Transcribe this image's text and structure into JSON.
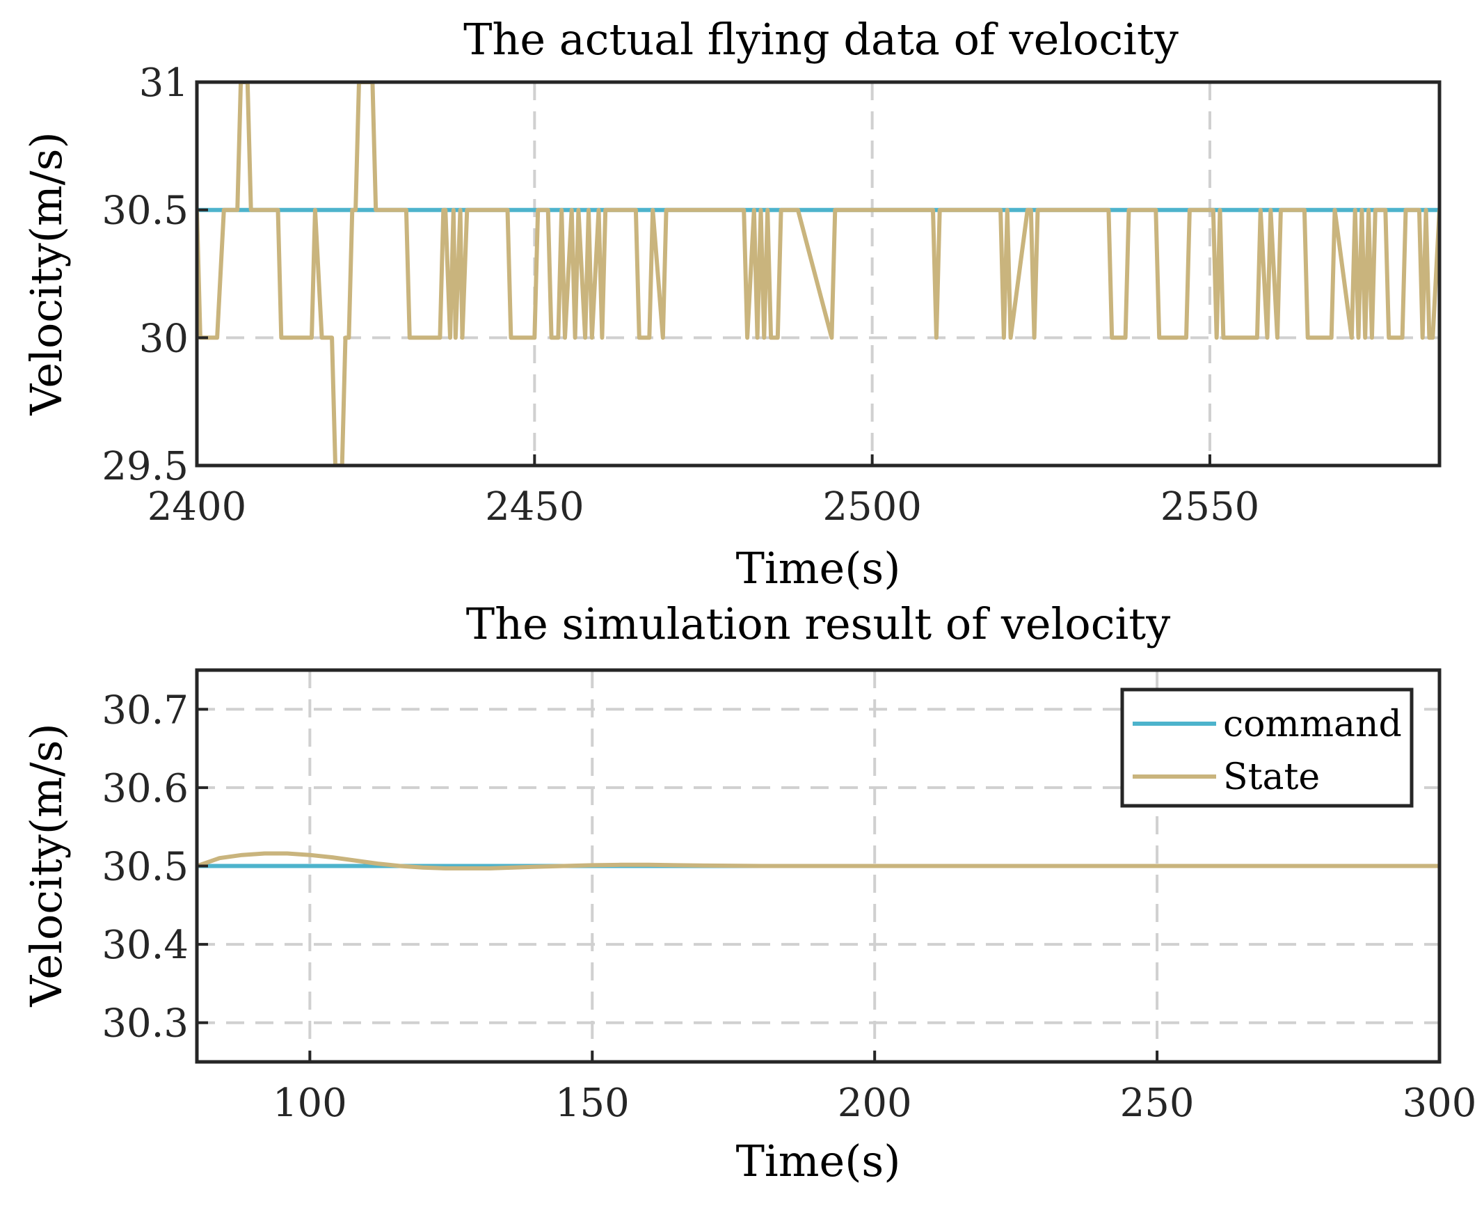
{
  "chart_data": [
    {
      "type": "line",
      "title": "The actual flying data of velocity",
      "xlabel": "Time(s)",
      "ylabel": "Velocity(m/s)",
      "xlim": [
        2400,
        2584
      ],
      "ylim": [
        29.5,
        31
      ],
      "xticks": [
        2400,
        2450,
        2500,
        2550
      ],
      "xtick_labels": [
        "2400",
        "2450",
        "2500",
        "2550"
      ],
      "yticks": [
        29.5,
        30,
        30.5,
        31
      ],
      "ytick_labels": [
        "29.5",
        "30",
        "30.5",
        "31"
      ],
      "grid": true,
      "colors": {
        "command": "#4db3cc",
        "state": "#c9b47d"
      },
      "series": [
        {
          "name": "command",
          "x": [
            2400,
            2584
          ],
          "y": [
            30.5,
            30.5
          ]
        },
        {
          "name": "state",
          "x": [
            2400,
            2400.5,
            2403,
            2404,
            2406,
            2406.5,
            2407.5,
            2408,
            2408.5,
            2409.5,
            2412,
            2412.5,
            2417,
            2417.5,
            2418.5,
            2420,
            2420.5,
            2421.5,
            2422,
            2422.5,
            2423,
            2423.5,
            2424,
            2426,
            2426.5,
            2427,
            2431,
            2431.5,
            2436,
            2436.5,
            2436.8,
            2437.5,
            2438,
            2438.3,
            2439,
            2439.3,
            2440,
            2440.3,
            2446,
            2446.5,
            2450,
            2450.5,
            2452,
            2452.5,
            2453.5,
            2454,
            2454.5,
            2455.5,
            2456,
            2456.5,
            2457.5,
            2458,
            2458.5,
            2459.5,
            2460,
            2460.5,
            2465,
            2465.5,
            2467,
            2467.5,
            2469,
            2469.5,
            2481,
            2481.5,
            2482.5,
            2483,
            2483.5,
            2484,
            2484.5,
            2485,
            2486,
            2486.5,
            2488.5,
            2489,
            2494,
            2494.5,
            2495,
            2495.5,
            2509,
            2509.5,
            2510,
            2510.5,
            2519,
            2519.5,
            2520,
            2520.5,
            2523,
            2523.5,
            2524,
            2524.5,
            2535,
            2535.5,
            2537.5,
            2538,
            2542,
            2542.5,
            2546.5,
            2547,
            2550.5,
            2551,
            2551.5,
            2552,
            2557,
            2557.5,
            2558.5,
            2559,
            2560,
            2560.5,
            2564,
            2564.5,
            2568,
            2568.5,
            2571,
            2571.5,
            2572,
            2572.5,
            2573,
            2573.5,
            2574,
            2574.5,
            2576,
            2576.5,
            2578.5,
            2579,
            2581,
            2581.5,
            2582,
            2582.5,
            2583,
            2584
          ],
          "y": [
            30.5,
            30,
            30,
            30.5,
            30.5,
            31,
            31,
            30.5,
            30.5,
            30.5,
            30.5,
            30,
            30,
            30.5,
            30,
            30,
            29.5,
            29.5,
            30,
            30,
            30.5,
            30.5,
            31,
            31,
            30.5,
            30.5,
            30.5,
            30,
            30,
            30.5,
            30.5,
            30,
            30.5,
            30,
            30.5,
            30,
            30.5,
            30.5,
            30.5,
            30,
            30,
            30.5,
            30.5,
            30,
            30,
            30.5,
            30,
            30.5,
            30,
            30.5,
            30,
            30.5,
            30,
            30.5,
            30,
            30.5,
            30.5,
            30,
            30,
            30.5,
            30,
            30.5,
            30.5,
            30,
            30.5,
            30,
            30.5,
            30,
            30.5,
            30,
            30,
            30.5,
            30.5,
            30.5,
            30,
            30.5,
            30.5,
            30.5,
            30.5,
            30,
            30.5,
            30.5,
            30.5,
            30,
            30.5,
            30,
            30.5,
            30.5,
            30,
            30.5,
            30.5,
            30,
            30,
            30.5,
            30.5,
            30,
            30,
            30.5,
            30.5,
            30,
            30.5,
            30,
            30,
            30.5,
            30,
            30.5,
            30,
            30.5,
            30.5,
            30,
            30,
            30.5,
            30,
            30.5,
            30,
            30.5,
            30,
            30.5,
            30,
            30.5,
            30.5,
            30,
            30,
            30.5,
            30.5,
            30,
            30.5,
            30,
            30,
            30.5
          ]
        }
      ]
    },
    {
      "type": "line",
      "title": "The simulation result of velocity",
      "xlabel": "Time(s)",
      "ylabel": "Velocity(m/s)",
      "xlim": [
        80,
        300
      ],
      "ylim": [
        30.25,
        30.75
      ],
      "xticks": [
        100,
        150,
        200,
        250,
        300
      ],
      "xtick_labels": [
        "100",
        "150",
        "200",
        "250",
        "300"
      ],
      "yticks": [
        30.3,
        30.4,
        30.5,
        30.6,
        30.7
      ],
      "ytick_labels": [
        "30.3",
        "30.4",
        "30.5",
        "30.6",
        "30.7"
      ],
      "grid": true,
      "legend": {
        "position": "top-right",
        "entries": [
          "command",
          "State"
        ]
      },
      "colors": {
        "command": "#4db3cc",
        "state": "#c9b47d"
      },
      "series": [
        {
          "name": "command",
          "x": [
            80,
            300
          ],
          "y": [
            30.5,
            30.5
          ]
        },
        {
          "name": "State",
          "x": [
            80,
            84,
            88,
            92,
            96,
            100,
            104,
            108,
            112,
            116,
            120,
            124,
            128,
            132,
            136,
            140,
            145,
            150,
            155,
            160,
            165,
            170,
            180,
            190,
            200,
            220,
            250,
            300
          ],
          "y": [
            30.5,
            30.51,
            30.514,
            30.516,
            30.516,
            30.514,
            30.511,
            30.507,
            30.503,
            30.5,
            30.498,
            30.497,
            30.497,
            30.497,
            30.498,
            30.499,
            30.5,
            30.501,
            30.5015,
            30.5015,
            30.501,
            30.5005,
            30.5,
            30.5,
            30.5,
            30.5,
            30.5,
            30.5
          ]
        }
      ]
    }
  ]
}
